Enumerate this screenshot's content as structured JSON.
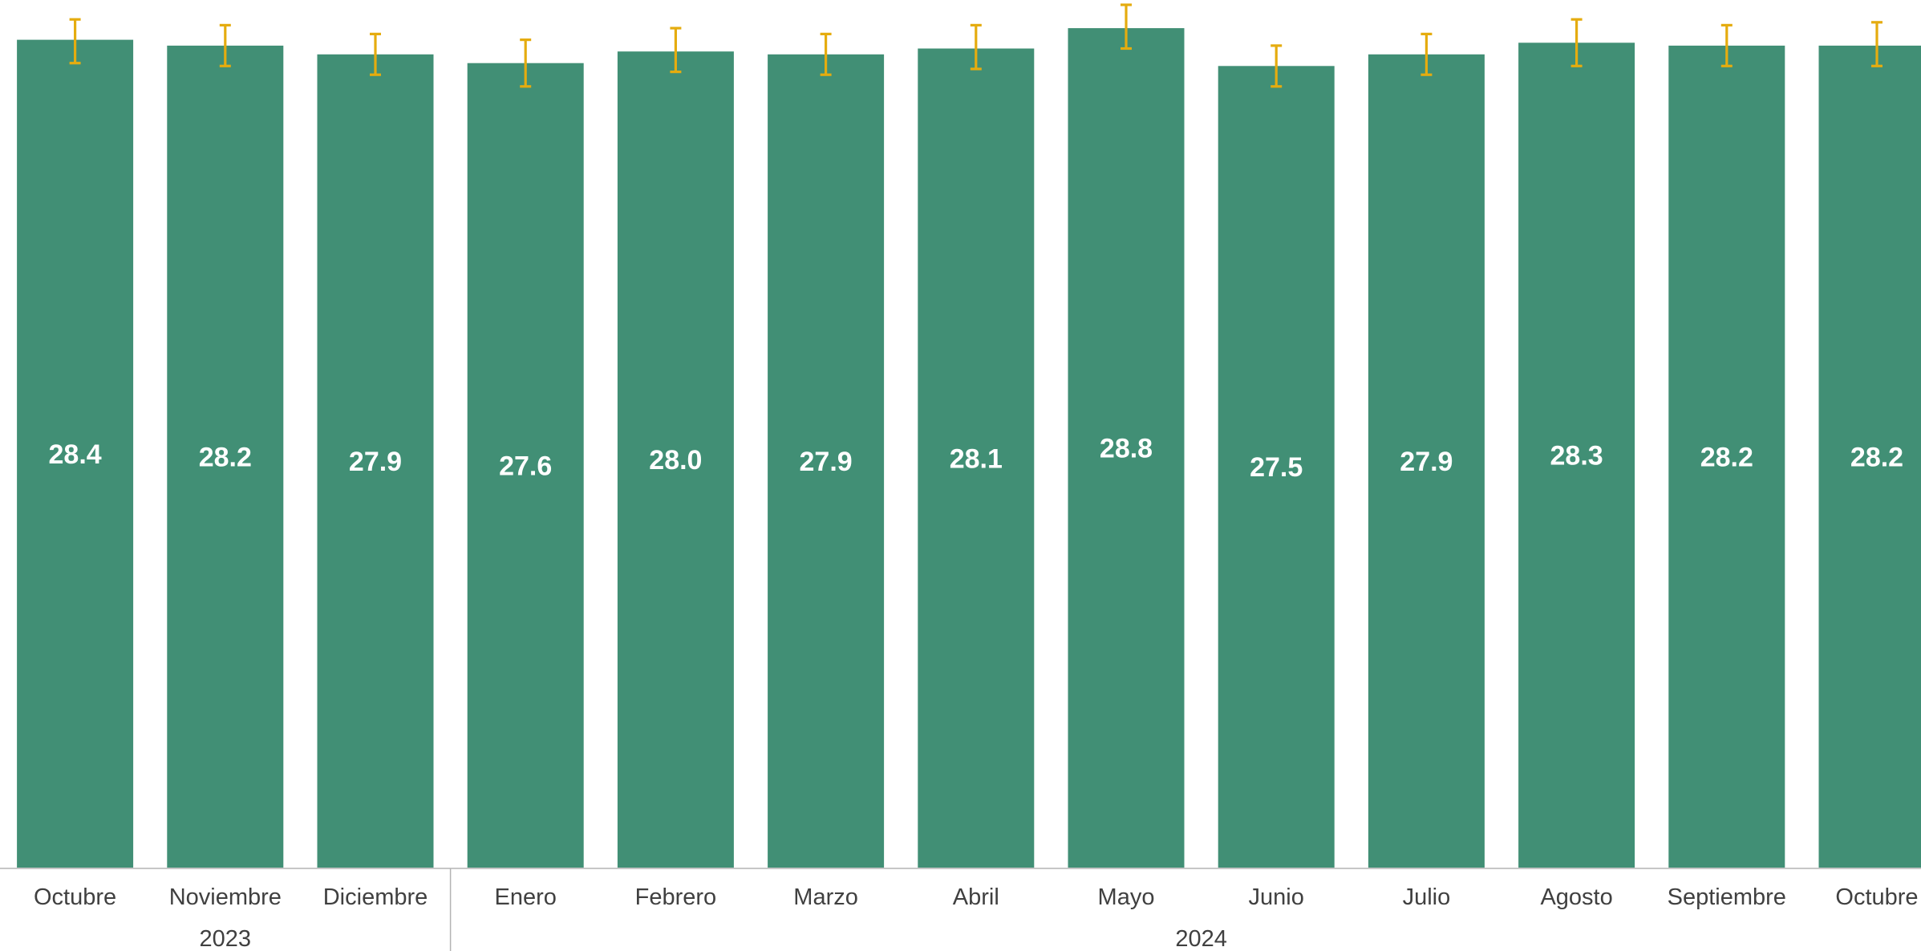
{
  "chart_data": {
    "type": "bar",
    "categories": [
      "Octubre",
      "Noviembre",
      "Diciembre",
      "Enero",
      "Febrero",
      "Marzo",
      "Abril",
      "Mayo",
      "Junio",
      "Julio",
      "Agosto",
      "Septiembre",
      "Octubre"
    ],
    "groups": [
      {
        "label": "2023",
        "categories": [
          "Octubre",
          "Noviembre",
          "Diciembre"
        ]
      },
      {
        "label": "2024",
        "categories": [
          "Enero",
          "Febrero",
          "Marzo",
          "Abril",
          "Mayo",
          "Junio",
          "Julio",
          "Agosto",
          "Septiembre",
          "Octubre"
        ]
      }
    ],
    "values": [
      28.4,
      28.2,
      27.9,
      27.6,
      28.0,
      27.9,
      28.1,
      28.8,
      27.5,
      27.9,
      28.3,
      28.2,
      28.2
    ],
    "value_labels": [
      "28.4",
      "28.2",
      "27.9",
      "27.6",
      "28.0",
      "27.9",
      "28.1",
      "28.8",
      "27.5",
      "27.9",
      "28.3",
      "28.2",
      "28.2"
    ],
    "error_bars": [
      [
        27.6,
        29.1
      ],
      [
        27.5,
        28.9
      ],
      [
        27.2,
        28.6
      ],
      [
        26.8,
        28.4
      ],
      [
        27.3,
        28.8
      ],
      [
        27.2,
        28.6
      ],
      [
        27.4,
        28.9
      ],
      [
        28.1,
        29.6
      ],
      [
        26.8,
        28.2
      ],
      [
        27.2,
        28.6
      ],
      [
        27.5,
        29.1
      ],
      [
        27.5,
        28.9
      ],
      [
        27.5,
        29.0
      ]
    ],
    "ylim": [
      0,
      29.6
    ],
    "grid": false,
    "legend": "none",
    "title": "",
    "xlabel": "",
    "ylabel": ""
  },
  "colors": {
    "bar": "#418f75",
    "error_bar": "#e5ac0f",
    "value_label": "#ffffff",
    "axis_line": "#b3b3b3",
    "tick_label": "#404040"
  }
}
